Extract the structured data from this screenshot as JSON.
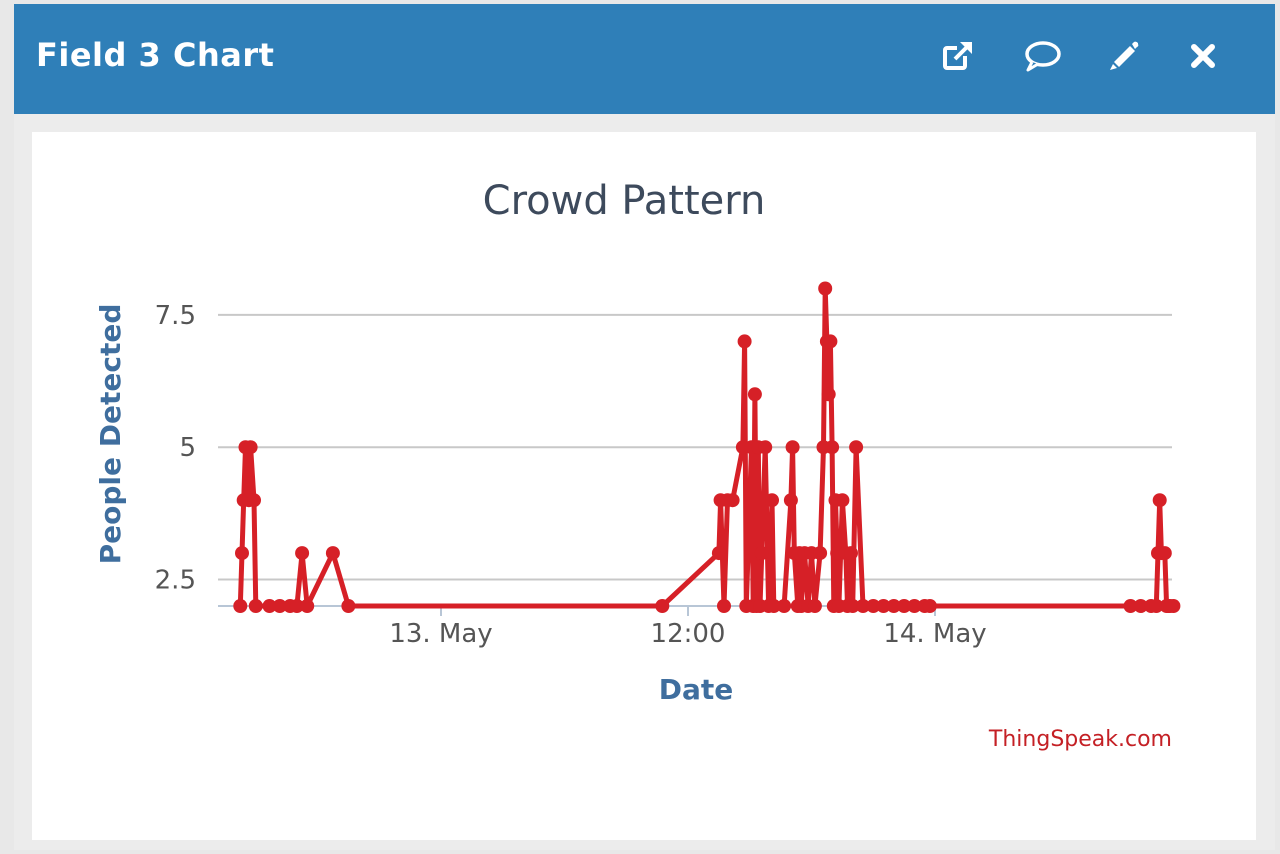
{
  "header": {
    "title": "Field 3 Chart",
    "icons": [
      "external-link-icon",
      "comment-icon",
      "pencil-icon",
      "close-icon"
    ]
  },
  "colors": {
    "header_bg": "#2f7fb8",
    "series": "#d62027",
    "axis_label": "#3f6e9e",
    "credit": "#c42025"
  },
  "chart_data": {
    "type": "line",
    "title": "Crowd Pattern",
    "xlabel": "Date",
    "ylabel": "People Detected",
    "x_axis": "datetime",
    "x_ticks": [
      {
        "label": "13. May",
        "x": "13 May 00:00"
      },
      {
        "label": "12:00",
        "x": "13 May 12:00"
      },
      {
        "label": "14. May",
        "x": "14 May 00:00"
      }
    ],
    "y_ticks": [
      {
        "label": "2.5",
        "value": 2.5
      },
      {
        "label": "5",
        "value": 5
      },
      {
        "label": "7.5",
        "value": 7.5
      }
    ],
    "ylim": [
      2,
      8.5
    ],
    "grid": true,
    "legend": "none",
    "credit": "ThingSpeak.com",
    "series": [
      {
        "color": "#d62027",
        "points": [
          [
            "12 May 14:15",
            2
          ],
          [
            "12 May 14:20",
            3
          ],
          [
            "12 May 14:25",
            4
          ],
          [
            "12 May 14:30",
            5
          ],
          [
            "12 May 14:40",
            4
          ],
          [
            "12 May 14:45",
            5
          ],
          [
            "12 May 14:55",
            4
          ],
          [
            "12 May 15:00",
            2
          ],
          [
            "12 May 15:40",
            2
          ],
          [
            "12 May 16:10",
            2
          ],
          [
            "12 May 16:40",
            2
          ],
          [
            "12 May 17:00",
            2
          ],
          [
            "12 May 17:15",
            3
          ],
          [
            "12 May 17:30",
            2
          ],
          [
            "12 May 18:45",
            3
          ],
          [
            "12 May 19:30",
            2
          ],
          [
            "13 May 10:45",
            2
          ],
          [
            "13 May 13:30",
            3
          ],
          [
            "13 May 13:35",
            4
          ],
          [
            "13 May 13:45",
            2
          ],
          [
            "13 May 13:55",
            4
          ],
          [
            "13 May 14:10",
            4
          ],
          [
            "13 May 14:40",
            5
          ],
          [
            "13 May 14:45",
            7
          ],
          [
            "13 May 14:50",
            2
          ],
          [
            "13 May 15:05",
            5
          ],
          [
            "13 May 15:10",
            2
          ],
          [
            "13 May 15:15",
            6
          ],
          [
            "13 May 15:20",
            2
          ],
          [
            "13 May 15:25",
            5
          ],
          [
            "13 May 15:30",
            2
          ],
          [
            "13 May 15:35",
            3
          ],
          [
            "13 May 15:45",
            5
          ],
          [
            "13 May 15:55",
            2
          ],
          [
            "13 May 16:05",
            4
          ],
          [
            "13 May 16:10",
            2
          ],
          [
            "13 May 16:40",
            2
          ],
          [
            "13 May 17:00",
            4
          ],
          [
            "13 May 17:05",
            5
          ],
          [
            "13 May 17:10",
            3
          ],
          [
            "13 May 17:20",
            2
          ],
          [
            "13 May 17:25",
            3
          ],
          [
            "13 May 17:30",
            2
          ],
          [
            "13 May 17:40",
            3
          ],
          [
            "13 May 17:50",
            2
          ],
          [
            "13 May 18:00",
            3
          ],
          [
            "13 May 18:10",
            2
          ],
          [
            "13 May 18:25",
            3
          ],
          [
            "13 May 18:35",
            5
          ],
          [
            "13 May 18:40",
            8
          ],
          [
            "13 May 18:45",
            7
          ],
          [
            "13 May 18:50",
            6
          ],
          [
            "13 May 18:55",
            7
          ],
          [
            "13 May 19:00",
            5
          ],
          [
            "13 May 19:05",
            2
          ],
          [
            "13 May 19:10",
            4
          ],
          [
            "13 May 19:15",
            3
          ],
          [
            "13 May 19:20",
            2
          ],
          [
            "13 May 19:30",
            4
          ],
          [
            "13 May 19:40",
            3
          ],
          [
            "13 May 19:45",
            2
          ],
          [
            "13 May 19:55",
            3
          ],
          [
            "13 May 20:00",
            2
          ],
          [
            "13 May 20:10",
            5
          ],
          [
            "13 May 20:30",
            2
          ],
          [
            "13 May 21:00",
            2
          ],
          [
            "13 May 21:30",
            2
          ],
          [
            "13 May 22:00",
            2
          ],
          [
            "13 May 22:30",
            2
          ],
          [
            "13 May 23:00",
            2
          ],
          [
            "13 May 23:30",
            2
          ],
          [
            "13 May 23:45",
            2
          ],
          [
            "14 May 09:30",
            2
          ],
          [
            "14 May 10:00",
            2
          ],
          [
            "14 May 10:30",
            2
          ],
          [
            "14 May 10:45",
            2
          ],
          [
            "14 May 10:50",
            3
          ],
          [
            "14 May 10:55",
            4
          ],
          [
            "14 May 11:00",
            3
          ],
          [
            "14 May 11:10",
            3
          ],
          [
            "14 May 11:15",
            2
          ],
          [
            "14 May 11:20",
            2
          ],
          [
            "14 May 11:25",
            2
          ],
          [
            "14 May 11:35",
            2
          ]
        ]
      }
    ]
  }
}
